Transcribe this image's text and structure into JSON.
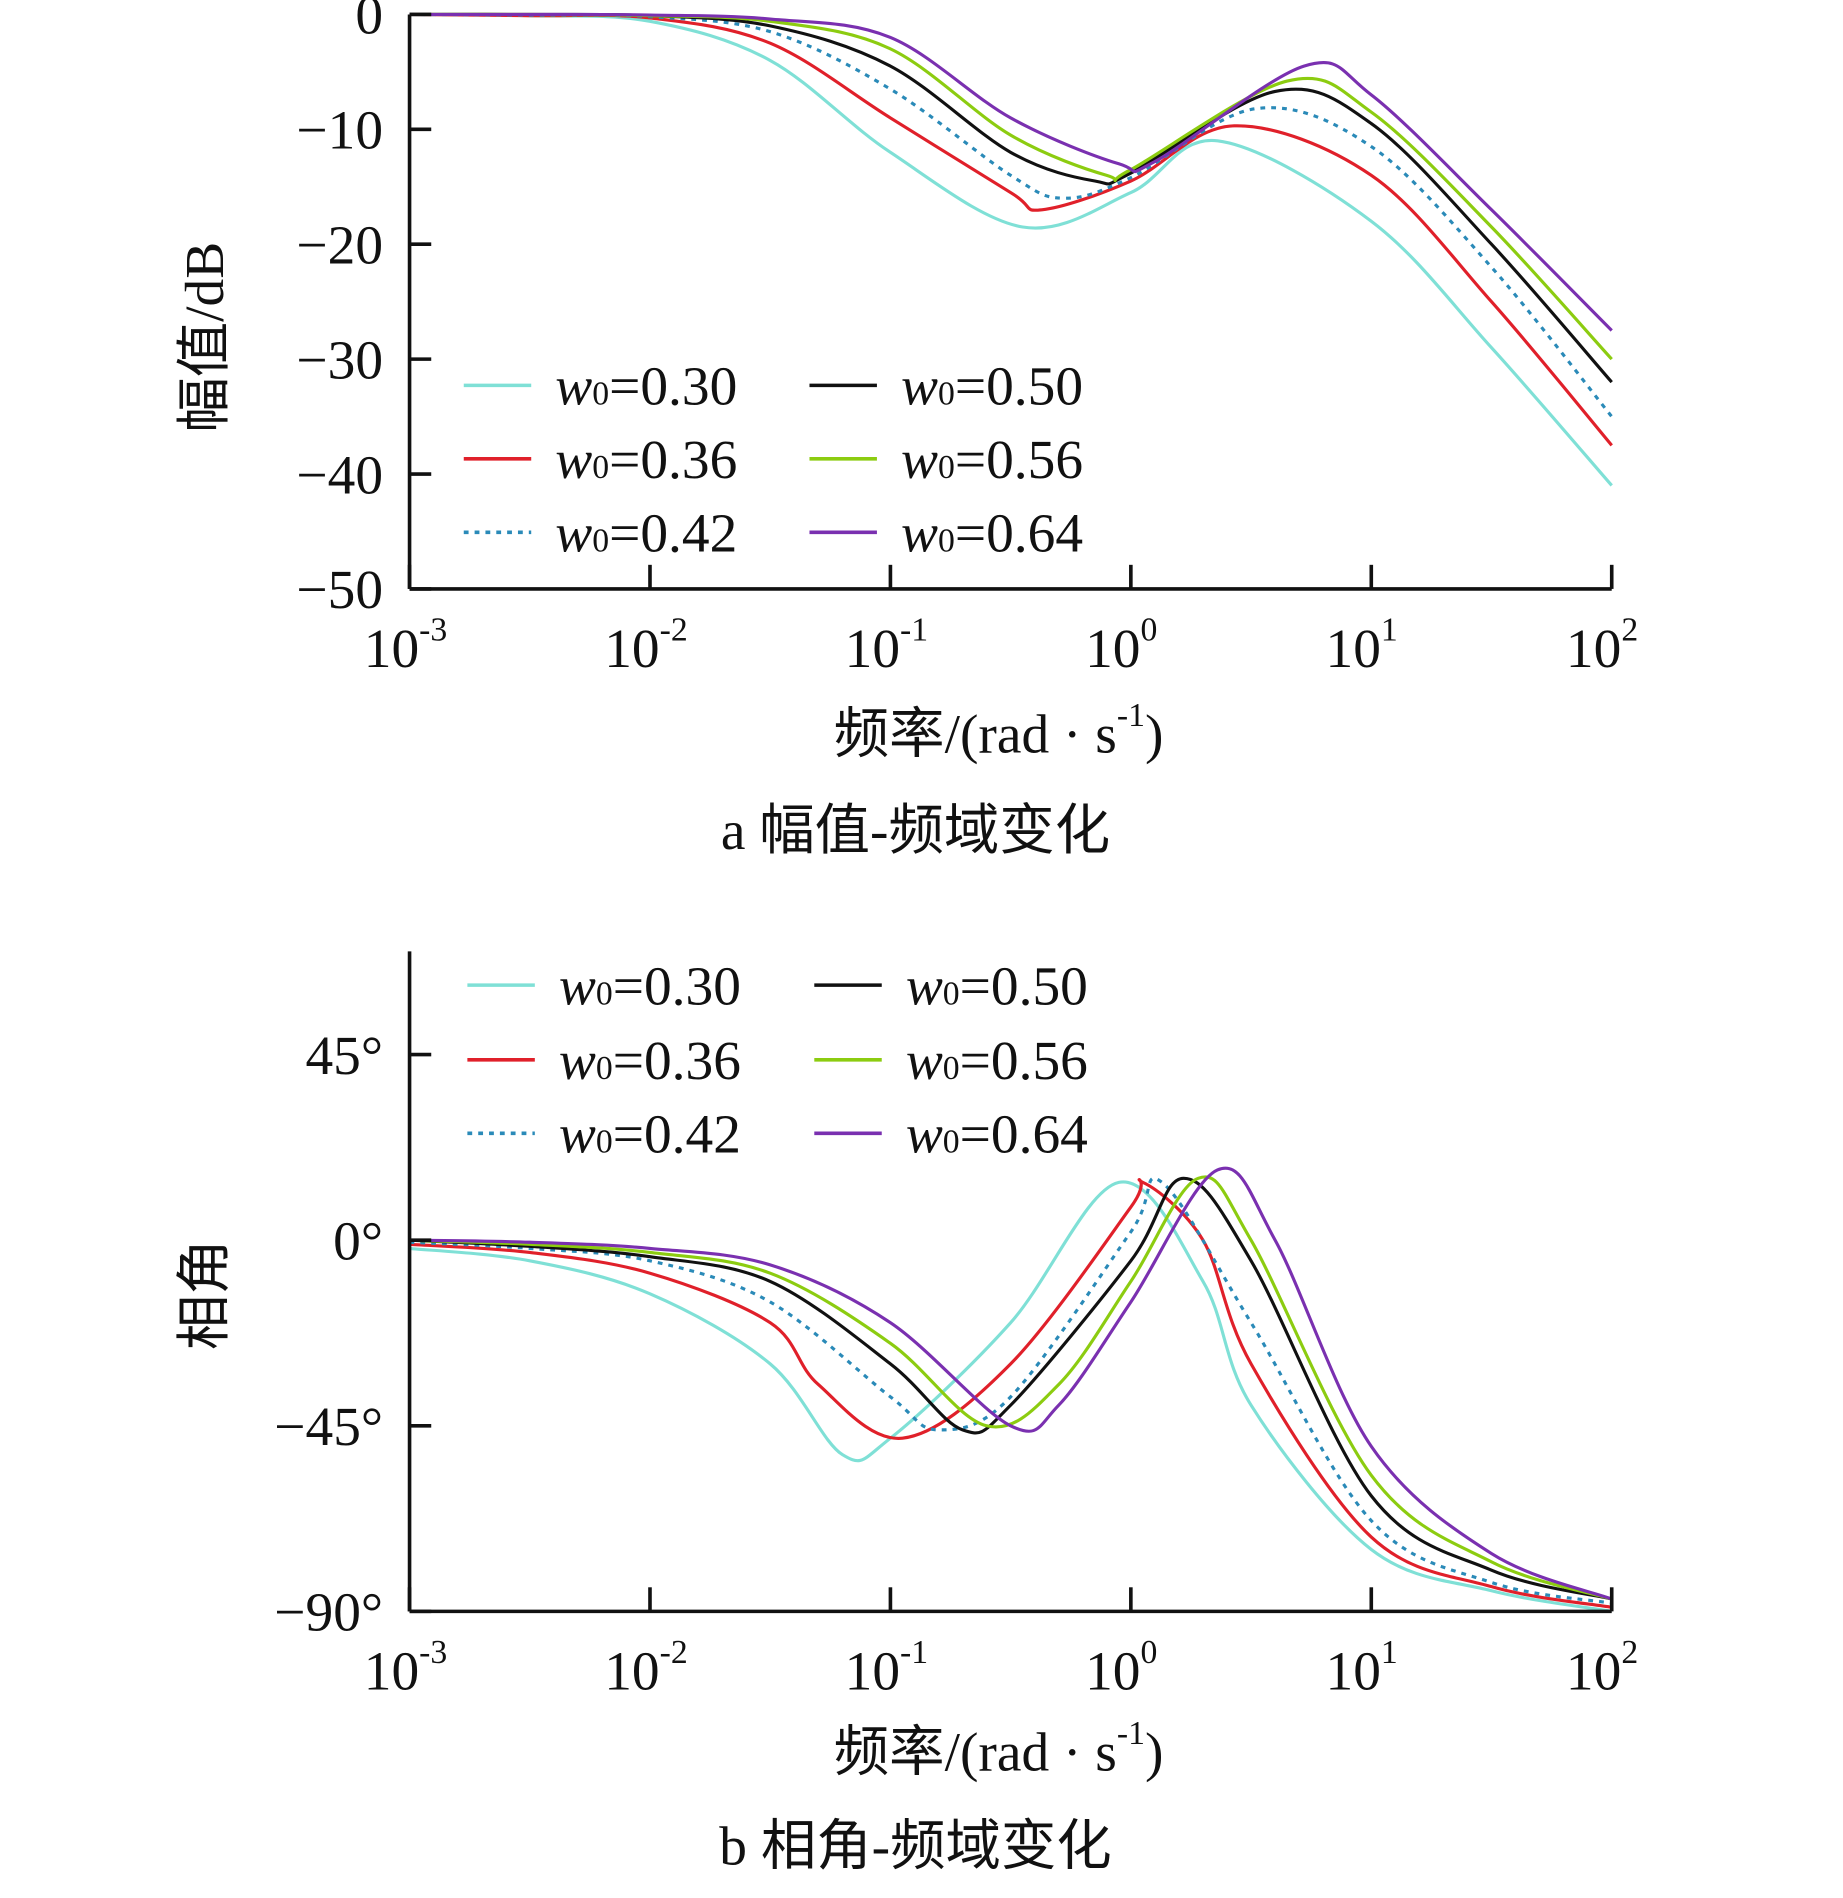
{
  "chart_data": [
    {
      "type": "line",
      "id": "magnitude",
      "caption": "a  幅值-频域变化",
      "xlabel": "频率/(rad · s",
      "xlabel_sup": "-1",
      "xlabel_end": ")",
      "ylabel": "幅值/dB",
      "xscale": "log",
      "xlim_log10": [
        -3,
        2
      ],
      "ylim": [
        -50,
        0
      ],
      "yticks": [
        0,
        -10,
        -20,
        -30,
        -40,
        -50
      ],
      "ytick_labels": [
        "0",
        "−10",
        "−20",
        "−30",
        "−40",
        "−50"
      ],
      "xticks_log10": [
        -3,
        -2,
        -1,
        0,
        1,
        2
      ],
      "xtick_base": "10",
      "xtick_exponents": [
        "-3",
        "-2",
        "-1",
        "0",
        "1",
        "2"
      ],
      "legend_position": "lower-left",
      "series": [
        {
          "name": "w0=0.30",
          "color": "#7fe0d6",
          "dash": false,
          "log10x": [
            -3,
            -2.5,
            -2,
            -1.5,
            -1,
            -0.45,
            0,
            0.36,
            1,
            1.5,
            2
          ],
          "y": [
            0,
            -0.1,
            -0.6,
            -4,
            -12,
            -18.5,
            -15.5,
            -11,
            -18,
            -29,
            -41
          ]
        },
        {
          "name": "w0=0.36",
          "color": "#e0202a",
          "dash": false,
          "log10x": [
            -3,
            -2.5,
            -2,
            -1.5,
            -1,
            -0.5,
            -0.37,
            0,
            0.43,
            1,
            1.5,
            2
          ],
          "y": [
            0,
            -0.1,
            -0.3,
            -2.5,
            -9,
            -15.5,
            -17,
            -14.5,
            -9.7,
            -14,
            -25,
            -37.5
          ]
        },
        {
          "name": "w0=0.42",
          "color": "#2a8ab8",
          "dash": true,
          "log10x": [
            -3,
            -2.5,
            -2,
            -1.5,
            -1,
            -0.5,
            -0.28,
            0,
            0.52,
            1,
            1.5,
            2
          ],
          "y": [
            0,
            -0.05,
            -0.2,
            -1.5,
            -6.5,
            -14,
            -16,
            -14.2,
            -8.2,
            -11.5,
            -22,
            -35
          ]
        },
        {
          "name": "w0=0.50",
          "color": "#111111",
          "dash": false,
          "log10x": [
            -3,
            -2.5,
            -2,
            -1.5,
            -1,
            -0.5,
            -0.15,
            0,
            0.6,
            1,
            1.5,
            2
          ],
          "y": [
            0,
            0,
            -0.1,
            -1,
            -4.5,
            -12,
            -14.5,
            -13.8,
            -6.7,
            -9.5,
            -20,
            -32
          ]
        },
        {
          "name": "w0=0.56",
          "color": "#8ccc10",
          "dash": false,
          "log10x": [
            -3,
            -2.5,
            -2,
            -1.5,
            -1,
            -0.5,
            -0.1,
            0,
            0.65,
            1,
            1.5,
            2
          ],
          "y": [
            0,
            0,
            -0.1,
            -0.6,
            -3,
            -10.5,
            -14,
            -13.5,
            -5.8,
            -8.5,
            -18.5,
            -30
          ]
        },
        {
          "name": "w0=0.64",
          "color": "#7a30b0",
          "dash": false,
          "log10x": [
            -3,
            -2.5,
            -2,
            -1.5,
            -1,
            -0.5,
            -0.05,
            0.1,
            0.72,
            1,
            1.5,
            2
          ],
          "y": [
            0,
            0,
            -0.05,
            -0.4,
            -2,
            -9,
            -13,
            -12.8,
            -4.5,
            -7,
            -17,
            -27.5
          ]
        }
      ]
    },
    {
      "type": "line",
      "id": "phase",
      "caption": "b  相角-频域变化",
      "xlabel": "频率/(rad · s",
      "xlabel_sup": "-1",
      "xlabel_end": ")",
      "ylabel": "相角",
      "xscale": "log",
      "xlim_log10": [
        -3,
        2
      ],
      "ylim": [
        -90,
        70
      ],
      "yticks": [
        45,
        0,
        -45,
        -90
      ],
      "ytick_labels": [
        "45°",
        "0°",
        "−45°",
        "−90°"
      ],
      "xticks_log10": [
        -3,
        -2,
        -1,
        0,
        1,
        2
      ],
      "xtick_base": "10",
      "xtick_exponents": [
        "-3",
        "-2",
        "-1",
        "0",
        "1",
        "2"
      ],
      "legend_position": "top-left",
      "series": [
        {
          "name": "w0=0.30",
          "color": "#7fe0d6",
          "dash": false,
          "log10x": [
            -3,
            -2.5,
            -2,
            -1.5,
            -1.2,
            -1,
            -0.5,
            -0.05,
            0.3,
            0.5,
            1,
            1.5,
            2
          ],
          "y": [
            -2,
            -5,
            -13,
            -30,
            -52,
            -48,
            -20,
            14,
            -10,
            -40,
            -75,
            -85,
            -90
          ]
        },
        {
          "name": "w0=0.36",
          "color": "#e0202a",
          "dash": false,
          "log10x": [
            -3,
            -2.5,
            -2,
            -1.5,
            -1.3,
            -0.95,
            -0.5,
            0,
            0.05,
            0.3,
            0.5,
            1,
            1.5,
            2
          ],
          "y": [
            -1,
            -3,
            -8,
            -20,
            -35,
            -48,
            -30,
            8,
            14,
            0,
            -30,
            -72,
            -84,
            -89
          ]
        },
        {
          "name": "w0=0.42",
          "color": "#2a8ab8",
          "dash": true,
          "log10x": [
            -3,
            -2.5,
            -2,
            -1.5,
            -1,
            -0.8,
            -0.5,
            0,
            0.13,
            0.5,
            1,
            1.5,
            2
          ],
          "y": [
            -0.5,
            -2,
            -5,
            -15,
            -38,
            -46,
            -38,
            2,
            14,
            -20,
            -68,
            -83,
            -88
          ]
        },
        {
          "name": "w0=0.50",
          "color": "#111111",
          "dash": false,
          "log10x": [
            -3,
            -2.5,
            -2,
            -1.5,
            -1,
            -0.7,
            -0.5,
            0,
            0.22,
            0.5,
            1,
            1.5,
            2
          ],
          "y": [
            0,
            -1.5,
            -4,
            -10,
            -30,
            -46,
            -40,
            -5,
            15,
            -5,
            -62,
            -80,
            -87
          ]
        },
        {
          "name": "w0=0.56",
          "color": "#8ccc10",
          "dash": false,
          "log10x": [
            -3,
            -2.5,
            -2,
            -1.5,
            -1,
            -0.6,
            -0.3,
            0,
            0.28,
            0.5,
            1,
            1.5,
            2
          ],
          "y": [
            0,
            -1,
            -3,
            -8,
            -25,
            -45,
            -35,
            -10,
            15,
            0,
            -57,
            -78,
            -87
          ]
        },
        {
          "name": "w0=0.64",
          "color": "#7a30b0",
          "dash": false,
          "log10x": [
            -3,
            -2.5,
            -2,
            -1.5,
            -1,
            -0.5,
            -0.3,
            0,
            0.36,
            0.6,
            1,
            1.5,
            2
          ],
          "y": [
            0,
            -0.5,
            -2,
            -6,
            -20,
            -45,
            -40,
            -15,
            17,
            0,
            -50,
            -76,
            -87
          ]
        }
      ]
    }
  ]
}
